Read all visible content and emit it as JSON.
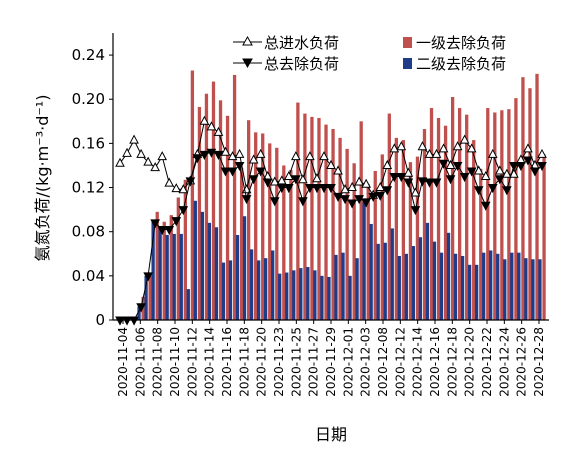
{
  "chart_data": {
    "type": "bar",
    "xlabel": "日期",
    "ylabel": "氨氮负荷/(kg·m⁻³·d⁻¹)",
    "ylim": [
      0,
      0.26
    ],
    "yticks": [
      "0",
      "0.04",
      "0.08",
      "0.12",
      "0.16",
      "0.20",
      "0.24"
    ],
    "ytick_values": [
      0,
      0.04,
      0.08,
      0.12,
      0.16,
      0.2,
      0.24
    ],
    "tick_labels": [
      "2020-11-04",
      "2020-11-06",
      "2020-11-08",
      "2020-11-10",
      "2020-11-12",
      "2020-11-14",
      "2020-11-16",
      "2020-11-18",
      "2020-11-20",
      "2020-11-23",
      "2020-11-25",
      "2020-11-27",
      "2020-11-29",
      "2020-12-01",
      "2020-12-03",
      "2020-12-08",
      "2020-12-12",
      "2020-12-14",
      "2020-12-16",
      "2020-12-18",
      "2020-12-20",
      "2020-12-22",
      "2020-12-24",
      "2020-12-26",
      "2020-12-28"
    ],
    "legend": {
      "influent": "总进水负荷",
      "removal": "总去除负荷",
      "primary": "一级去除负荷",
      "secondary": "二级去除负荷"
    },
    "colors": {
      "primary": "#c0504d",
      "secondary": "#1f3c88",
      "line": "#000000"
    },
    "series": [
      {
        "name": "总进水负荷",
        "values": [
          0.142,
          0.151,
          0.163,
          0.15,
          0.143,
          0.138,
          0.148,
          0.124,
          0.119,
          0.118,
          0.126,
          0.15,
          0.18,
          0.175,
          0.17,
          0.152,
          0.148,
          0.15,
          0.118,
          0.145,
          0.15,
          0.13,
          0.125,
          0.126,
          0.13,
          0.148,
          0.127,
          0.148,
          0.128,
          0.148,
          0.14,
          0.135,
          0.118,
          0.12,
          0.125,
          0.123,
          0.113,
          0.12,
          0.14,
          0.155,
          0.157,
          0.133,
          0.115,
          0.157,
          0.15,
          0.15,
          0.155,
          0.14,
          0.157,
          0.163,
          0.155,
          0.135,
          0.13,
          0.15,
          0.135,
          0.132,
          0.132,
          0.145,
          0.155,
          0.14,
          0.15
        ]
      },
      {
        "name": "总去除负荷",
        "values": [
          0.0,
          0.0,
          0.0,
          0.012,
          0.04,
          0.088,
          0.082,
          0.082,
          0.09,
          0.1,
          0.126,
          0.147,
          0.15,
          0.152,
          0.15,
          0.135,
          0.135,
          0.14,
          0.11,
          0.128,
          0.135,
          0.125,
          0.108,
          0.12,
          0.12,
          0.128,
          0.108,
          0.12,
          0.12,
          0.12,
          0.12,
          0.112,
          0.11,
          0.106,
          0.11,
          0.107,
          0.112,
          0.113,
          0.118,
          0.13,
          0.13,
          0.125,
          0.1,
          0.126,
          0.125,
          0.125,
          0.142,
          0.128,
          0.14,
          0.13,
          0.135,
          0.118,
          0.104,
          0.12,
          0.128,
          0.118,
          0.14,
          0.14,
          0.145,
          0.135,
          0.14
        ]
      },
      {
        "name": "一级去除负荷",
        "values": [
          0.0,
          0.0,
          0.0,
          0.021,
          0.04,
          0.098,
          0.089,
          0.095,
          0.111,
          0.127,
          0.226,
          0.193,
          0.205,
          0.216,
          0.199,
          0.185,
          0.222,
          0.138,
          0.181,
          0.17,
          0.169,
          0.16,
          0.156,
          0.14,
          0.136,
          0.197,
          0.187,
          0.184,
          0.183,
          0.177,
          0.173,
          0.165,
          0.155,
          0.142,
          0.18,
          0.123,
          0.135,
          0.15,
          0.187,
          0.165,
          0.163,
          0.143,
          0.148,
          0.173,
          0.192,
          0.183,
          0.176,
          0.202,
          0.192,
          0.186,
          0.163,
          0.137,
          0.192,
          0.188,
          0.19,
          0.191,
          0.201,
          0.22,
          0.21,
          0.223,
          0.15
        ]
      },
      {
        "name": "二级去除负荷",
        "values": [
          0.0,
          0.0,
          0.0,
          0.012,
          0.04,
          0.091,
          0.084,
          0.077,
          0.078,
          0.078,
          0.028,
          0.108,
          0.098,
          0.088,
          0.084,
          0.052,
          0.054,
          0.077,
          0.094,
          0.064,
          0.054,
          0.056,
          0.063,
          0.042,
          0.043,
          0.045,
          0.047,
          0.048,
          0.045,
          0.04,
          0.039,
          0.059,
          0.061,
          0.04,
          0.056,
          0.107,
          0.087,
          0.069,
          0.07,
          0.083,
          0.058,
          0.06,
          0.067,
          0.075,
          0.088,
          0.071,
          0.061,
          0.079,
          0.06,
          0.058,
          0.05,
          0.05,
          0.061,
          0.063,
          0.06,
          0.055,
          0.061,
          0.061,
          0.056,
          0.055,
          0.055
        ]
      }
    ]
  }
}
